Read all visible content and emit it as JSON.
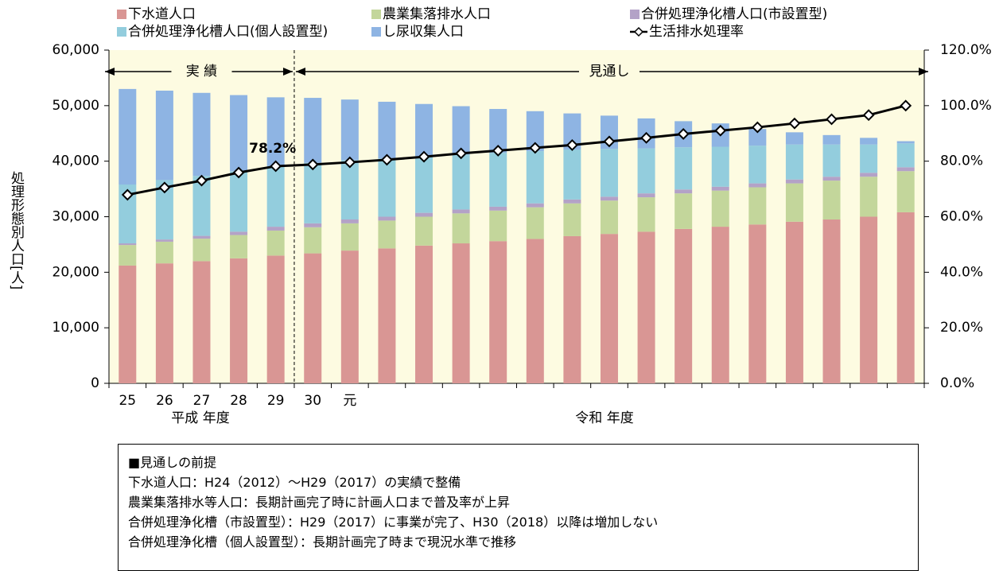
{
  "chart_data": {
    "type": "bar",
    "stacked": true,
    "categories": [
      "25",
      "26",
      "27",
      "28",
      "29",
      "30",
      "元",
      null,
      null,
      null,
      null,
      null,
      null,
      null,
      null,
      null,
      null,
      null,
      null,
      null,
      null,
      null
    ],
    "series": [
      {
        "name": "下水道人口",
        "color": "#d99694",
        "values": [
          21200,
          21600,
          22000,
          22500,
          23000,
          23400,
          23900,
          24300,
          24800,
          25200,
          25600,
          26000,
          26500,
          26900,
          27300,
          27800,
          28200,
          28600,
          29100,
          29500,
          30000,
          30800
        ]
      },
      {
        "name": "農業集落排水人口",
        "color": "#c3d69b",
        "values": [
          3700,
          3900,
          4050,
          4200,
          4500,
          4700,
          4900,
          5000,
          5200,
          5400,
          5500,
          5700,
          5900,
          6000,
          6200,
          6400,
          6500,
          6700,
          6900,
          7000,
          7200,
          7400
        ]
      },
      {
        "name": "合併処理浄化槽人口(市設置型)",
        "color": "#b3a2c7",
        "values": [
          300,
          400,
          500,
          600,
          700,
          700,
          700,
          700,
          700,
          700,
          700,
          700,
          700,
          700,
          700,
          700,
          700,
          700,
          700,
          700,
          700,
          700
        ]
      },
      {
        "name": "合併処理浄化槽人口(個人設置型)",
        "color": "#93cddd",
        "values": [
          10600,
          10700,
          10800,
          10900,
          10900,
          10900,
          10700,
          10500,
          10200,
          9900,
          9700,
          9400,
          9000,
          8600,
          8100,
          7600,
          7200,
          6800,
          6300,
          5800,
          5100,
          4300
        ]
      },
      {
        "name": "し尿収集人口",
        "color": "#8eb4e3",
        "values": [
          17200,
          16100,
          14950,
          13700,
          12400,
          11700,
          10900,
          10200,
          9400,
          8700,
          7900,
          7200,
          6500,
          6000,
          5400,
          4700,
          4200,
          3000,
          2200,
          1700,
          1200,
          400
        ]
      },
      {
        "name": "生活排水処理率",
        "color": "#000000",
        "type": "line",
        "axis": "y2",
        "values": [
          67.9,
          70.5,
          73.0,
          75.9,
          78.2,
          78.8,
          79.6,
          80.5,
          81.6,
          82.8,
          83.8,
          84.8,
          85.8,
          87.1,
          88.4,
          89.8,
          91.0,
          92.2,
          93.6,
          95.1,
          96.6,
          100.0
        ],
        "value_labels": [
          null,
          null,
          null,
          null,
          "78.2%",
          null,
          null,
          null,
          null,
          null,
          null,
          null,
          null,
          null,
          null,
          null,
          null,
          null,
          null,
          null,
          null,
          null
        ]
      }
    ],
    "ylabel": "処理形態別人口[人]",
    "ylim": [
      0,
      60000
    ],
    "yticks": [
      0,
      {
        "value": 10000,
        "label": "10,000"
      },
      {
        "value": 20000,
        "label": "20,000"
      },
      {
        "value": 30000,
        "label": "30,000"
      },
      {
        "value": 40000,
        "label": "40,000"
      },
      {
        "value": 50000,
        "label": "50,000"
      },
      {
        "value": 60000,
        "label": "60,000"
      }
    ],
    "y2lim": [
      0,
      120
    ],
    "y2ticks": [
      {
        "value": 0,
        "label": "0.0%"
      },
      {
        "value": 20,
        "label": "20.0%"
      },
      {
        "value": 40,
        "label": "40.0%"
      },
      {
        "value": 60,
        "label": "60.0%"
      },
      {
        "value": 80,
        "label": "80.0%"
      },
      {
        "value": 100,
        "label": "100.0%"
      },
      {
        "value": 120,
        "label": "120.0%"
      }
    ],
    "annotations": [
      "実 績",
      "見通し",
      "平成 年度",
      "令和 年度"
    ],
    "legend": "top"
  },
  "notes": {
    "title": "■見通しの前提",
    "lines": [
      "下水道人口：H24（2012）～H29（2017）の実績で整備",
      "農業集落排水等人口：長期計画完了時に計画人口まで普及率が上昇",
      "合併処理浄化槽（市設置型）：H29（2017）に事業が完了、H30（2018）以降は増加しない",
      "合併処理浄化槽（個人設置型）：長期計画完了時まで現況水準で推移"
    ]
  }
}
